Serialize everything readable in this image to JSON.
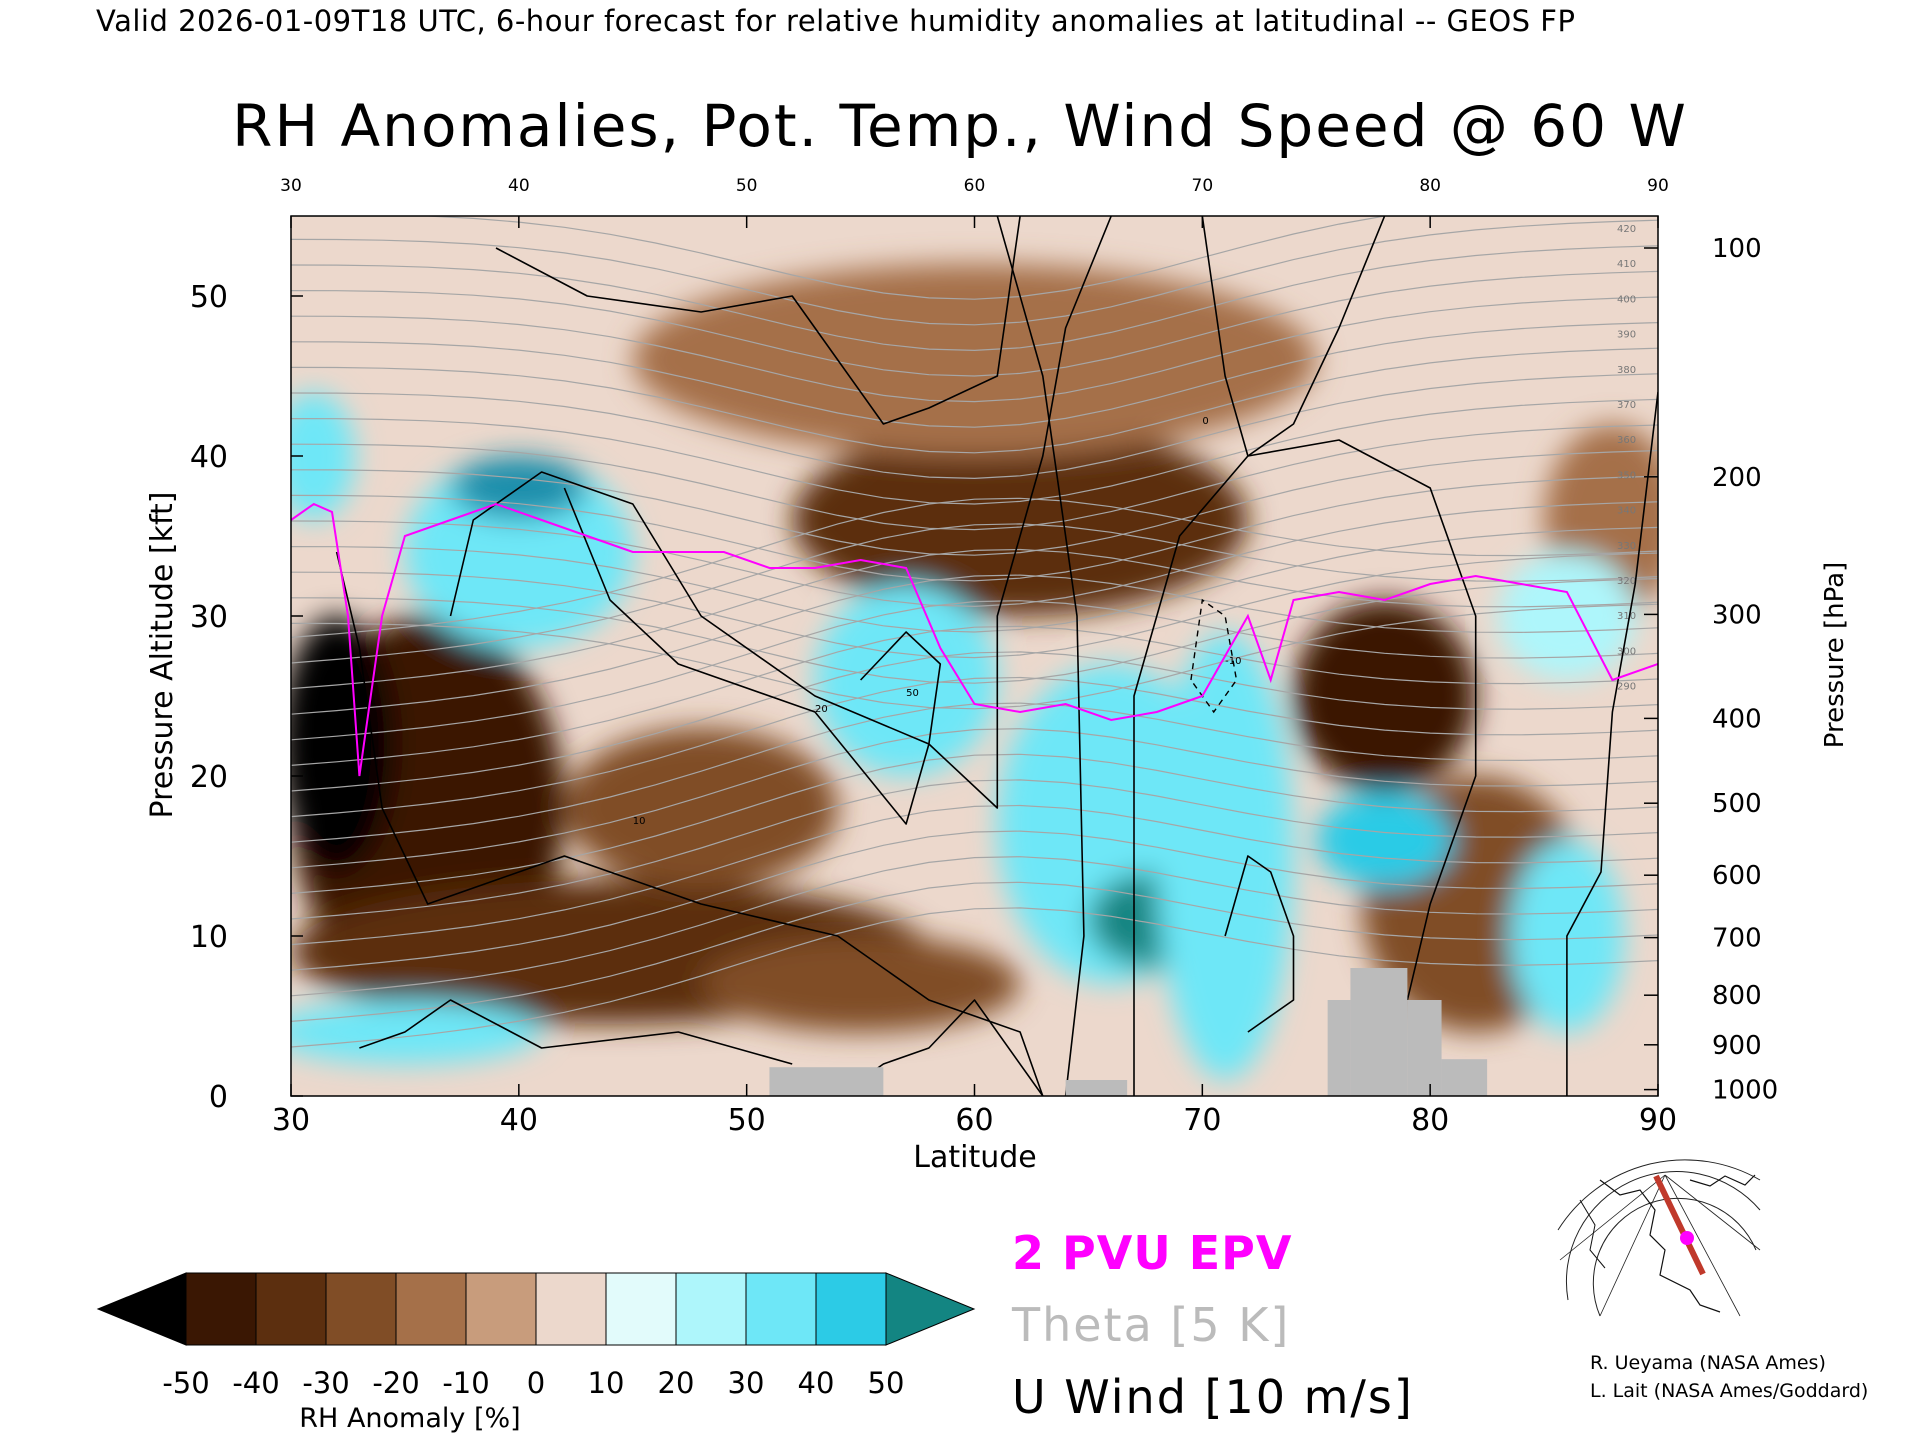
{
  "header": "Valid 2026-01-09T18 UTC, 6-hour forecast for relative humidity anomalies at latitudinal -- GEOS FP",
  "chart_data": {
    "type": "heatmap",
    "title": "RH Anomalies, Pot. Temp., Wind Speed @ 60 W",
    "xlabel": "Latitude",
    "ylabel": "Pressure Altitude [kft]",
    "y2label": "Pressure [hPa]",
    "xlim": [
      30,
      90
    ],
    "ylim": [
      0,
      55
    ],
    "x_ticks": [
      30,
      40,
      50,
      60,
      70,
      80,
      90
    ],
    "y_ticks": [
      0,
      10,
      20,
      30,
      40,
      50
    ],
    "pressure_ticks": [
      {
        "hpa": "1000",
        "kft": 0.4
      },
      {
        "hpa": "900",
        "kft": 3.2
      },
      {
        "hpa": "800",
        "kft": 6.3
      },
      {
        "hpa": "700",
        "kft": 9.9
      },
      {
        "hpa": "600",
        "kft": 13.8
      },
      {
        "hpa": "500",
        "kft": 18.3
      },
      {
        "hpa": "400",
        "kft": 23.6
      },
      {
        "hpa": "300",
        "kft": 30.1
      },
      {
        "hpa": "200",
        "kft": 38.7
      },
      {
        "hpa": "100",
        "kft": 53.0
      }
    ],
    "colorbar": {
      "label": "RH Anomaly [%]",
      "levels": [
        -50,
        -40,
        -30,
        -20,
        -10,
        0,
        10,
        20,
        30,
        40,
        50
      ],
      "tick_labels": [
        "-50",
        "-40",
        "-30",
        "-20",
        "-10",
        "0",
        "10",
        "20",
        "30",
        "40",
        "50"
      ],
      "colors": [
        "#3a1703",
        "#5c2f0f",
        "#804d26",
        "#a57049",
        "#c89c7c",
        "#ecd8cc",
        "#e2fbfb",
        "#aef6fb",
        "#6ee7f7",
        "#2ccbe6",
        "#1a8fac"
      ],
      "under_color": "#000000",
      "over_color": "#138582"
    },
    "rh_blobs": [
      {
        "lat": 36,
        "alt": 18,
        "rx": 6,
        "ry": 12,
        "v": -45
      },
      {
        "lat": 32,
        "alt": 22,
        "rx": 2.5,
        "ry": 8,
        "v": -55
      },
      {
        "lat": 44,
        "alt": 9,
        "rx": 14,
        "ry": 4.5,
        "v": -40
      },
      {
        "lat": 48,
        "alt": 18,
        "rx": 6,
        "ry": 5,
        "v": -25
      },
      {
        "lat": 55,
        "alt": 7,
        "rx": 7,
        "ry": 3,
        "v": -25
      },
      {
        "lat": 62,
        "alt": 36,
        "rx": 10,
        "ry": 6,
        "v": -40
      },
      {
        "lat": 60,
        "alt": 46,
        "rx": 15,
        "ry": 6,
        "v": -12
      },
      {
        "lat": 78,
        "alt": 25,
        "rx": 4,
        "ry": 6,
        "v": -45
      },
      {
        "lat": 82,
        "alt": 12,
        "rx": 5,
        "ry": 8,
        "v": -25
      },
      {
        "lat": 88,
        "alt": 36,
        "rx": 3,
        "ry": 6,
        "v": -15
      },
      {
        "lat": 40,
        "alt": 34,
        "rx": 5,
        "ry": 6,
        "v": 30
      },
      {
        "lat": 40,
        "alt": 38,
        "rx": 3,
        "ry": 2,
        "v": 50
      },
      {
        "lat": 57,
        "alt": 26,
        "rx": 4,
        "ry": 6,
        "v": 35
      },
      {
        "lat": 66,
        "alt": 17,
        "rx": 5,
        "ry": 10,
        "v": 30
      },
      {
        "lat": 68,
        "alt": 11,
        "rx": 3,
        "ry": 3,
        "v": 55
      },
      {
        "lat": 71,
        "alt": 15,
        "rx": 3,
        "ry": 14,
        "v": 30
      },
      {
        "lat": 78,
        "alt": 16,
        "rx": 3,
        "ry": 3,
        "v": 40
      },
      {
        "lat": 86,
        "alt": 10,
        "rx": 2.5,
        "ry": 6,
        "v": 35
      },
      {
        "lat": 35,
        "alt": 4,
        "rx": 6,
        "ry": 2,
        "v": 30
      },
      {
        "lat": 31,
        "alt": 40,
        "rx": 1.8,
        "ry": 4,
        "v": 30
      },
      {
        "lat": 86,
        "alt": 30,
        "rx": 3,
        "ry": 4,
        "v": 20
      }
    ],
    "theta_labels": [
      "420",
      "410",
      "400",
      "390",
      "380",
      "370",
      "360",
      "350",
      "340",
      "330",
      "320",
      "310",
      "300",
      "290"
    ],
    "wind_labels": [
      "10",
      "0",
      "-10",
      "20",
      "50"
    ],
    "epv_2pvu": [
      [
        30,
        36
      ],
      [
        31,
        37
      ],
      [
        31.8,
        36.5
      ],
      [
        32.5,
        30
      ],
      [
        33,
        20
      ],
      [
        34,
        30
      ],
      [
        35,
        35
      ],
      [
        37,
        36
      ],
      [
        39,
        37
      ],
      [
        41,
        36
      ],
      [
        43,
        35
      ],
      [
        45,
        34
      ],
      [
        47,
        34
      ],
      [
        49,
        34
      ],
      [
        51,
        33
      ],
      [
        53,
        33
      ],
      [
        55,
        33.5
      ],
      [
        57,
        33
      ],
      [
        58.5,
        28
      ],
      [
        60,
        24.5
      ],
      [
        62,
        24
      ],
      [
        64,
        24.5
      ],
      [
        66,
        23.5
      ],
      [
        68,
        24
      ],
      [
        70,
        25
      ],
      [
        72,
        30
      ],
      [
        73,
        26
      ],
      [
        74,
        31
      ],
      [
        76,
        31.5
      ],
      [
        78,
        31
      ],
      [
        80,
        32
      ],
      [
        82,
        32.5
      ],
      [
        84,
        32
      ],
      [
        86,
        31.5
      ],
      [
        88,
        26
      ],
      [
        90,
        27
      ]
    ],
    "ground_bars": [
      {
        "lat0": 51,
        "lat1": 56,
        "top": 1.8
      },
      {
        "lat0": 64,
        "lat1": 66.7,
        "top": 1
      },
      {
        "lat0": 75.5,
        "lat1": 76.5,
        "top": 6
      },
      {
        "lat0": 76.5,
        "lat1": 79,
        "top": 8
      },
      {
        "lat0": 79,
        "lat1": 80.5,
        "top": 6
      },
      {
        "lat0": 80.5,
        "lat1": 82.5,
        "top": 2.3
      }
    ]
  },
  "legend": {
    "epv": "2 PVU EPV",
    "theta": "Theta [5 K]",
    "uwind": "U Wind [10 m/s]"
  },
  "credits": {
    "line1": "R. Ueyama (NASA Ames)",
    "line2": "L. Lait (NASA Ames/Goddard)"
  },
  "colors": {
    "epv_line": "#ff00ff",
    "theta_line": "#a6a6a6",
    "wind_line": "#000000",
    "ground": "#bbbbbb",
    "map_track": "#c0392b",
    "map_marker": "#ff00ff"
  },
  "inset_map": {
    "icon": "polar-stereographic-map-icon"
  }
}
